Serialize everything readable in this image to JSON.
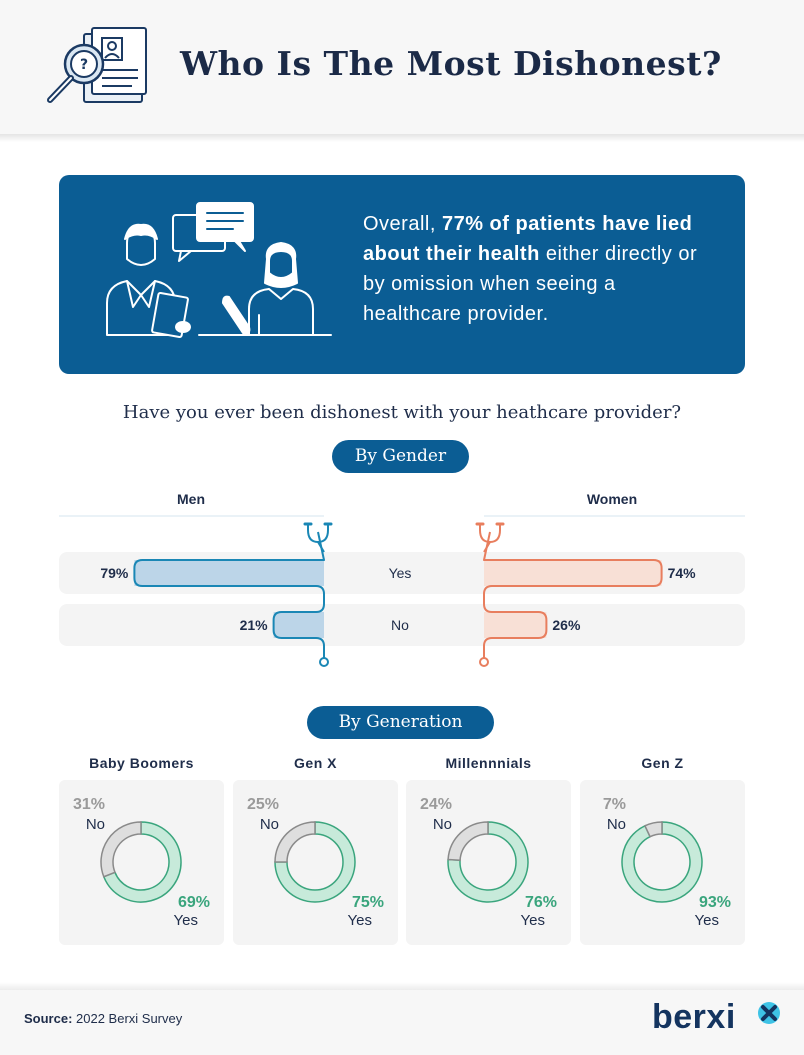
{
  "header": {
    "title": "Who Is The Most Dishonest?"
  },
  "banner": {
    "text_1": "Overall, ",
    "text_bold": "77% of patients have lied about their health",
    "text_2": " either directly or by omission when seeing a healthcare provider."
  },
  "question": "Have you ever been dishonest with your heathcare provider?",
  "gender_pill": "By Gender",
  "generation_pill": "By Generation",
  "chart_data": [
    {
      "type": "bar",
      "title": "By Gender",
      "categories": [
        "Yes",
        "No"
      ],
      "series": [
        {
          "name": "Men",
          "values": [
            79,
            21
          ],
          "labels": [
            "79%",
            "21%"
          ],
          "color": "#1a87b5",
          "fill": "#bcd5e8"
        },
        {
          "name": "Women",
          "values": [
            74,
            26
          ],
          "labels": [
            "74%",
            "26%"
          ],
          "color": "#e87e5e",
          "fill": "#f8e0d6"
        }
      ],
      "unit": "%",
      "ylim": [
        0,
        100
      ]
    },
    {
      "type": "pie",
      "title": "By Generation",
      "groups": [
        {
          "name": "Baby Boomers",
          "no": 31,
          "yes": 69,
          "no_label": "31%",
          "yes_label": "69%"
        },
        {
          "name": "Gen X",
          "no": 25,
          "yes": 75,
          "no_label": "25%",
          "yes_label": "75%"
        },
        {
          "name": "Millennnials",
          "no": 24,
          "yes": 76,
          "no_label": "24%",
          "yes_label": "76%"
        },
        {
          "name": "Gen Z",
          "no": 7,
          "yes": 93,
          "no_label": "7%",
          "yes_label": "93%"
        }
      ],
      "legend": {
        "no": "No",
        "yes": "Yes"
      },
      "colors": {
        "yes": "#c7eada",
        "yes_stroke": "#3aa57d",
        "no": "#dedede",
        "no_stroke": "#8a8a8a"
      }
    }
  ],
  "footer": {
    "source_label": "Source:",
    "source_text": " 2022 Berxi Survey",
    "brand": "berxi"
  },
  "colors": {
    "primary": "#0b5d94",
    "men": "#1a87b5",
    "women": "#e87e5e",
    "yes": "#3aa57d"
  }
}
